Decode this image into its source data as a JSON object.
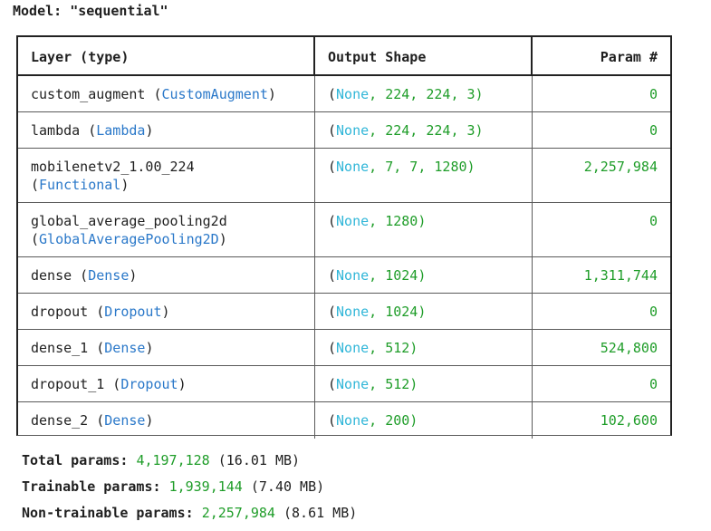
{
  "model_title": "Model: \"sequential\"",
  "headers": {
    "layer": "Layer (type)",
    "output": "Output Shape",
    "params": "Param #"
  },
  "rows": [
    {
      "name": "custom_augment",
      "name2": "",
      "cls": "CustomAugment",
      "cls_wrap": false,
      "shape_rest": ", 224, 224, 3)",
      "params": "0"
    },
    {
      "name": "lambda",
      "name2": "",
      "cls": "Lambda",
      "cls_wrap": false,
      "shape_rest": ", 224, 224, 3)",
      "params": "0"
    },
    {
      "name": "mobilenetv2_1.00_224",
      "cls": "Functional",
      "cls_wrap": true,
      "shape_rest": ", 7, 7, 1280)",
      "params": "2,257,984"
    },
    {
      "name": "global_average_pooling2d",
      "cls": "GlobalAveragePooling2D",
      "cls_wrap": true,
      "shape_rest": ", 1280)",
      "params": "0"
    },
    {
      "name": "dense",
      "cls": "Dense",
      "cls_wrap": false,
      "shape_rest": ", 1024)",
      "params": "1,311,744"
    },
    {
      "name": "dropout",
      "cls": "Dropout",
      "cls_wrap": false,
      "shape_rest": ", 1024)",
      "params": "0"
    },
    {
      "name": "dense_1",
      "cls": "Dense",
      "cls_wrap": false,
      "shape_rest": ", 512)",
      "params": "524,800"
    },
    {
      "name": "dropout_1",
      "cls": "Dropout",
      "cls_wrap": false,
      "shape_rest": ", 512)",
      "params": "0"
    },
    {
      "name": "dense_2",
      "cls": "Dense",
      "cls_wrap": false,
      "shape_rest": ", 200)",
      "params": "102,600"
    }
  ],
  "none_text": "None",
  "summary": {
    "total": {
      "label": "Total params:",
      "value": "4,197,128",
      "size": "(16.01 MB)"
    },
    "trainable": {
      "label": "Trainable params:",
      "value": "1,939,144",
      "size": "(7.40 MB)"
    },
    "non_trainable": {
      "label": "Non-trainable params:",
      "value": "2,257,984",
      "size": "(8.61 MB)"
    }
  },
  "colors": {
    "class_name": "#2a78c9",
    "none_keyword": "#30b6d8",
    "number": "#1f9d29",
    "text": "#1f1f1f"
  }
}
